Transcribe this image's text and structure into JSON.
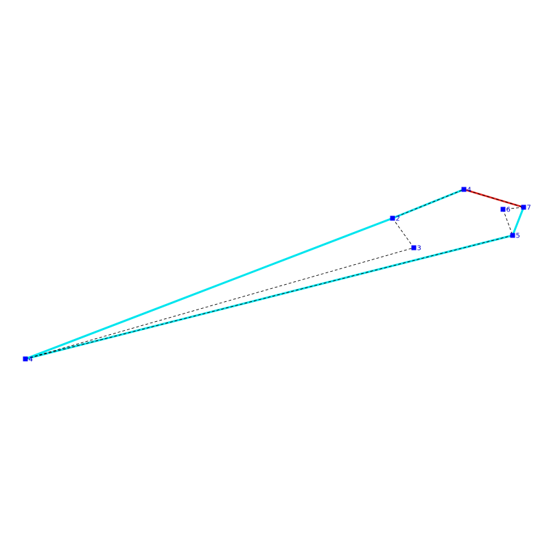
{
  "diagram": {
    "colors": {
      "background": "#ffffff",
      "hull": "#00e5ee",
      "highlight_edge": "#e8231c",
      "path": "#000000",
      "marker": "#0000ff",
      "label": "#0000cc"
    },
    "points": [
      {
        "id": "p4a",
        "label": "4"
      },
      {
        "id": "p2",
        "label": "2"
      },
      {
        "id": "p3",
        "label": "3"
      },
      {
        "id": "p4b",
        "label": "4"
      },
      {
        "id": "p7",
        "label": "7"
      },
      {
        "id": "p6",
        "label": "6"
      },
      {
        "id": "p5",
        "label": "5"
      },
      {
        "id": "p4c",
        "label": "4"
      }
    ],
    "hull_edges": [
      [
        "p4c",
        "p2"
      ],
      [
        "p2",
        "p4b"
      ],
      [
        "p7",
        "p5"
      ],
      [
        "p5",
        "p4c"
      ]
    ],
    "highlight_edges": [
      [
        "p4b",
        "p7"
      ]
    ],
    "dashed_path": [
      "p4c",
      "p3",
      "p2",
      "p4b",
      "p7",
      "p6",
      "p5",
      "p4c"
    ]
  }
}
